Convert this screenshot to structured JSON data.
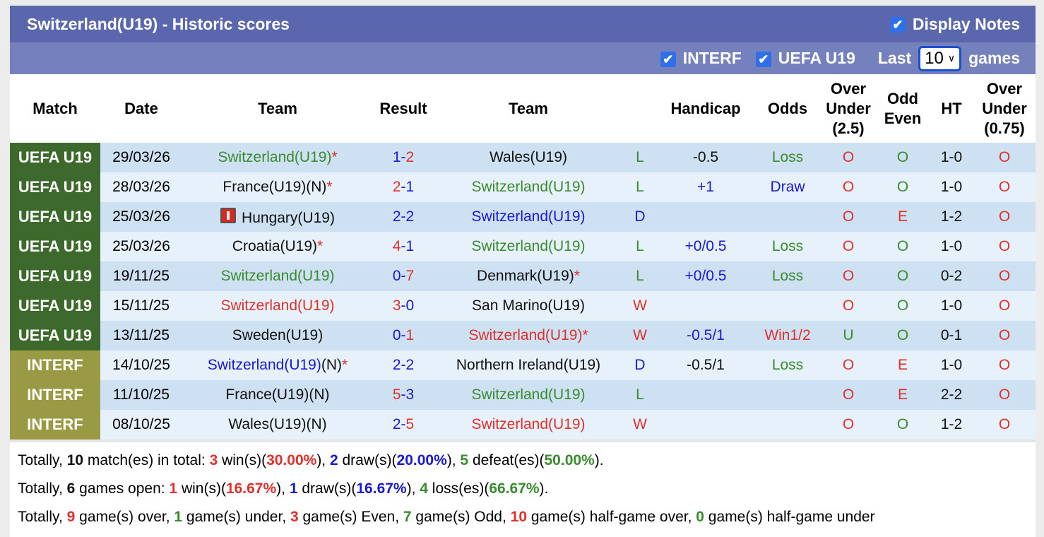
{
  "header": {
    "title": "Switzerland(U19) - Historic scores",
    "display_notes": "Display Notes",
    "filters": [
      {
        "label": "INTERF",
        "checked": true
      },
      {
        "label": "UEFA U19",
        "checked": true
      }
    ],
    "last_label": "Last",
    "last_value": "10",
    "games_label": "games"
  },
  "colors": {
    "uefa": "#3d6a2c",
    "interf": "#9a9a44",
    "green": "#3a8a2e",
    "red": "#e0302a",
    "blue": "#1818d8",
    "title_bar": "#5a67ad",
    "sub_bar": "#7581bd"
  },
  "columns": [
    "Match",
    "Date",
    "Team",
    "Result",
    "Team",
    "",
    "Handicap",
    "Odds",
    "Over Under (2.5)",
    "Odd Even",
    "HT",
    "Over Under (0.75)"
  ],
  "rows": [
    {
      "match": "UEFA U19",
      "type": "uefa",
      "date": "29/03/26",
      "home": "Switzerland(U19)",
      "home_color": "g",
      "home_star": "*",
      "home_suffix": "",
      "hs": "1",
      "as": "2",
      "away": "Wales(U19)",
      "away_color": "k",
      "away_star": "",
      "wl": "L",
      "wl_color": "g",
      "hcp": "-0.5",
      "hcp_color": "k",
      "odds": "Loss",
      "odds_color": "g",
      "ou": "O",
      "oe": "O",
      "ht": "1-0",
      "ou075": "O"
    },
    {
      "match": "UEFA U19",
      "type": "uefa",
      "date": "28/03/26",
      "home": "France(U19)(N)",
      "home_color": "k",
      "home_star": "*",
      "home_suffix": "",
      "hs": "2",
      "as": "1",
      "away": "Switzerland(U19)",
      "away_color": "g",
      "away_star": "",
      "wl": "L",
      "wl_color": "g",
      "hcp": "+1",
      "hcp_color": "b",
      "odds": "Draw",
      "odds_color": "b",
      "ou": "O",
      "oe": "O",
      "ht": "1-0",
      "ou075": "O"
    },
    {
      "match": "UEFA U19",
      "type": "uefa",
      "date": "25/03/26",
      "home": "Hungary(U19)",
      "home_flag": true,
      "home_color": "k",
      "home_star": "",
      "home_suffix": "",
      "hs": "2",
      "as": "2",
      "away": "Switzerland(U19)",
      "away_color": "b",
      "away_star": "",
      "wl": "D",
      "wl_color": "b",
      "hcp": "",
      "hcp_color": "k",
      "odds": "",
      "odds_color": "k",
      "ou": "O",
      "oe": "E",
      "ht": "1-2",
      "ou075": "O"
    },
    {
      "match": "UEFA U19",
      "type": "uefa",
      "date": "25/03/26",
      "home": "Croatia(U19)",
      "home_color": "k",
      "home_star": "*",
      "home_suffix": "",
      "hs": "4",
      "as": "1",
      "away": "Switzerland(U19)",
      "away_color": "g",
      "away_star": "",
      "wl": "L",
      "wl_color": "g",
      "hcp": "+0/0.5",
      "hcp_color": "b",
      "odds": "Loss",
      "odds_color": "g",
      "ou": "O",
      "oe": "O",
      "ht": "1-0",
      "ou075": "O"
    },
    {
      "match": "UEFA U19",
      "type": "uefa",
      "date": "19/11/25",
      "home": "Switzerland(U19)",
      "home_color": "g",
      "home_star": "",
      "home_suffix": "",
      "hs": "0",
      "as": "7",
      "away": "Denmark(U19)",
      "away_color": "k",
      "away_star": "*",
      "wl": "L",
      "wl_color": "g",
      "hcp": "+0/0.5",
      "hcp_color": "b",
      "odds": "Loss",
      "odds_color": "g",
      "ou": "O",
      "oe": "O",
      "ht": "0-2",
      "ou075": "O"
    },
    {
      "match": "UEFA U19",
      "type": "uefa",
      "date": "15/11/25",
      "home": "Switzerland(U19)",
      "home_color": "r",
      "home_star": "",
      "home_suffix": "",
      "hs": "3",
      "as": "0",
      "away": "San Marino(U19)",
      "away_color": "k",
      "away_star": "",
      "wl": "W",
      "wl_color": "r",
      "hcp": "",
      "hcp_color": "k",
      "odds": "",
      "odds_color": "k",
      "ou": "O",
      "oe": "O",
      "ht": "1-0",
      "ou075": "O"
    },
    {
      "match": "UEFA U19",
      "type": "uefa",
      "date": "13/11/25",
      "home": "Sweden(U19)",
      "home_color": "k",
      "home_star": "",
      "home_suffix": "",
      "hs": "0",
      "as": "1",
      "away": "Switzerland(U19)",
      "away_color": "r",
      "away_star": "*",
      "wl": "W",
      "wl_color": "r",
      "hcp": "-0.5/1",
      "hcp_color": "b",
      "odds": "Win1/2",
      "odds_color": "r",
      "ou": "U",
      "oe": "O",
      "ht": "0-1",
      "ou075": "O"
    },
    {
      "match": "INTERF",
      "type": "interf",
      "date": "14/10/25",
      "home": "Switzerland(U19)",
      "home_color": "b",
      "home_star": "*",
      "home_suffix": "(N)",
      "hs": "2",
      "as": "2",
      "away": "Northern Ireland(U19)",
      "away_color": "k",
      "away_star": "",
      "wl": "D",
      "wl_color": "b",
      "hcp": "-0.5/1",
      "hcp_color": "k",
      "odds": "Loss",
      "odds_color": "g",
      "ou": "O",
      "oe": "E",
      "ht": "1-0",
      "ou075": "O"
    },
    {
      "match": "INTERF",
      "type": "interf",
      "date": "11/10/25",
      "home": "France(U19)(N)",
      "home_color": "k",
      "home_star": "",
      "home_suffix": "",
      "hs": "5",
      "as": "3",
      "away": "Switzerland(U19)",
      "away_color": "g",
      "away_star": "",
      "wl": "L",
      "wl_color": "g",
      "hcp": "",
      "hcp_color": "k",
      "odds": "",
      "odds_color": "k",
      "ou": "O",
      "oe": "E",
      "ht": "2-2",
      "ou075": "O"
    },
    {
      "match": "INTERF",
      "type": "interf",
      "date": "08/10/25",
      "home": "Wales(U19)(N)",
      "home_color": "k",
      "home_star": "",
      "home_suffix": "",
      "hs": "2",
      "as": "5",
      "away": "Switzerland(U19)",
      "away_color": "r",
      "away_star": "",
      "wl": "W",
      "wl_color": "r",
      "hcp": "",
      "hcp_color": "k",
      "odds": "",
      "odds_color": "k",
      "ou": "O",
      "oe": "O",
      "ht": "1-2",
      "ou075": "O"
    }
  ],
  "summary": [
    [
      {
        "t": "Totally, "
      },
      {
        "t": "10",
        "c": "k",
        "b": true
      },
      {
        "t": " match(es) in total: "
      },
      {
        "t": "3",
        "c": "r",
        "b": true
      },
      {
        "t": " win(s)("
      },
      {
        "t": "30.00%",
        "c": "r",
        "b": true
      },
      {
        "t": "), "
      },
      {
        "t": "2",
        "c": "b",
        "b": true
      },
      {
        "t": " draw(s)("
      },
      {
        "t": "20.00%",
        "c": "b",
        "b": true
      },
      {
        "t": "), "
      },
      {
        "t": "5",
        "c": "g",
        "b": true
      },
      {
        "t": " defeat(es)("
      },
      {
        "t": "50.00%",
        "c": "g",
        "b": true
      },
      {
        "t": ")."
      }
    ],
    [
      {
        "t": "Totally, "
      },
      {
        "t": "6",
        "c": "k",
        "b": true
      },
      {
        "t": " games open: "
      },
      {
        "t": "1",
        "c": "r",
        "b": true
      },
      {
        "t": " win(s)("
      },
      {
        "t": "16.67%",
        "c": "r",
        "b": true
      },
      {
        "t": "), "
      },
      {
        "t": "1",
        "c": "b",
        "b": true
      },
      {
        "t": " draw(s)("
      },
      {
        "t": "16.67%",
        "c": "b",
        "b": true
      },
      {
        "t": "), "
      },
      {
        "t": "4",
        "c": "g",
        "b": true
      },
      {
        "t": " loss(es)("
      },
      {
        "t": "66.67%",
        "c": "g",
        "b": true
      },
      {
        "t": ")."
      }
    ],
    [
      {
        "t": "Totally, "
      },
      {
        "t": "9",
        "c": "r",
        "b": true
      },
      {
        "t": " game(s) over, "
      },
      {
        "t": "1",
        "c": "g",
        "b": true
      },
      {
        "t": " game(s) under, "
      },
      {
        "t": "3",
        "c": "r",
        "b": true
      },
      {
        "t": " game(s) Even, "
      },
      {
        "t": "7",
        "c": "g",
        "b": true
      },
      {
        "t": " game(s) Odd, "
      },
      {
        "t": "10",
        "c": "r",
        "b": true
      },
      {
        "t": " game(s) half-game over, "
      },
      {
        "t": "0",
        "c": "g",
        "b": true
      },
      {
        "t": " game(s) half-game under"
      }
    ]
  ]
}
